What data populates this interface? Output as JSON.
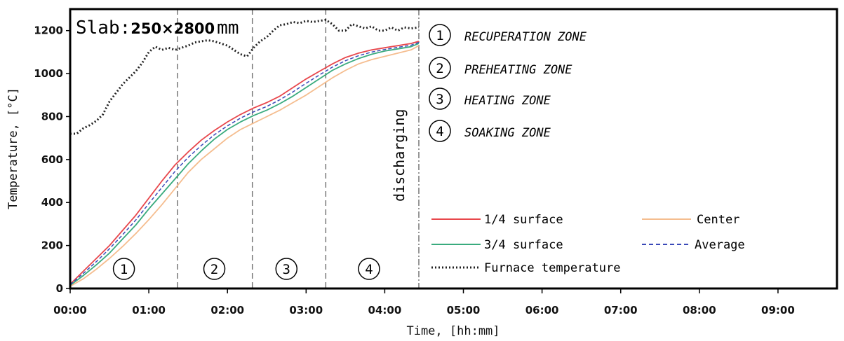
{
  "chart_data": {
    "type": "line",
    "title": {
      "prefix": "Slab:",
      "dims": "250×2800",
      "unit": "mm"
    },
    "xlabel": "Time, [hh:mm]",
    "ylabel": "Temperature, [°C]",
    "xlim": [
      0,
      585
    ],
    "ylim": [
      0,
      1300
    ],
    "xticks": [
      0,
      60,
      120,
      180,
      240,
      300,
      360,
      420,
      480,
      540
    ],
    "xtick_labels": [
      "00:00",
      "01:00",
      "02:00",
      "03:00",
      "04:00",
      "05:00",
      "06:00",
      "07:00",
      "08:00",
      "09:00"
    ],
    "yticks": [
      0,
      200,
      400,
      600,
      800,
      1000,
      1200
    ],
    "ytick_labels": [
      "0",
      "200",
      "400",
      "600",
      "800",
      "1000",
      "1200"
    ],
    "zone_boundaries": [
      82,
      139,
      195,
      266
    ],
    "discharge_label": "discharging",
    "zones": [
      {
        "num": "1",
        "name": "RECUPERATION ZONE",
        "mid": 41
      },
      {
        "num": "2",
        "name": "PREHEATING ZONE",
        "mid": 110
      },
      {
        "num": "3",
        "name": "HEATING ZONE",
        "mid": 165
      },
      {
        "num": "4",
        "name": "SOAKING ZONE",
        "mid": 228
      }
    ],
    "series": [
      {
        "name": "1/4 surface",
        "color": "#e8474c",
        "style": "solid",
        "x": [
          0,
          10,
          20,
          30,
          40,
          50,
          60,
          70,
          80,
          90,
          100,
          110,
          120,
          130,
          140,
          150,
          160,
          170,
          180,
          190,
          200,
          210,
          220,
          230,
          240,
          250,
          260,
          266
        ],
        "y": [
          20,
          80,
          140,
          200,
          270,
          340,
          420,
          500,
          575,
          635,
          690,
          735,
          775,
          810,
          840,
          865,
          895,
          935,
          975,
          1010,
          1045,
          1075,
          1095,
          1110,
          1120,
          1130,
          1140,
          1150
        ]
      },
      {
        "name": "3/4 surface",
        "color": "#3aab7e",
        "style": "solid",
        "x": [
          0,
          10,
          20,
          30,
          40,
          50,
          60,
          70,
          80,
          90,
          100,
          110,
          120,
          130,
          140,
          150,
          160,
          170,
          180,
          190,
          200,
          210,
          220,
          230,
          240,
          250,
          260,
          266
        ],
        "y": [
          15,
          60,
          110,
          165,
          230,
          295,
          370,
          440,
          510,
          580,
          640,
          695,
          740,
          775,
          805,
          830,
          860,
          895,
          935,
          975,
          1015,
          1045,
          1070,
          1090,
          1105,
          1115,
          1125,
          1140
        ]
      },
      {
        "name": "Center",
        "color": "#f5bd8f",
        "style": "solid",
        "x": [
          0,
          10,
          20,
          30,
          40,
          50,
          60,
          70,
          80,
          90,
          100,
          110,
          120,
          130,
          140,
          150,
          160,
          170,
          180,
          190,
          200,
          210,
          220,
          230,
          240,
          250,
          260,
          266
        ],
        "y": [
          10,
          45,
          90,
          140,
          195,
          255,
          320,
          390,
          465,
          540,
          600,
          650,
          700,
          740,
          770,
          800,
          830,
          865,
          900,
          940,
          980,
          1015,
          1045,
          1065,
          1080,
          1095,
          1110,
          1130
        ]
      },
      {
        "name": "Average",
        "color": "#3a49b8",
        "style": "dashed",
        "x": [
          0,
          10,
          20,
          30,
          40,
          50,
          60,
          70,
          80,
          90,
          100,
          110,
          120,
          130,
          140,
          150,
          160,
          170,
          180,
          190,
          200,
          210,
          220,
          230,
          240,
          250,
          260,
          266
        ],
        "y": [
          18,
          70,
          125,
          185,
          250,
          318,
          395,
          470,
          545,
          610,
          665,
          715,
          757,
          793,
          822,
          847,
          878,
          915,
          955,
          993,
          1030,
          1060,
          1083,
          1100,
          1112,
          1122,
          1132,
          1145
        ]
      },
      {
        "name": "Furnace temperature",
        "color": "#222222",
        "style": "dotted",
        "x": [
          0,
          5,
          10,
          15,
          20,
          25,
          30,
          35,
          40,
          45,
          50,
          55,
          60,
          65,
          70,
          75,
          80,
          85,
          90,
          95,
          100,
          105,
          110,
          115,
          120,
          125,
          130,
          135,
          140,
          145,
          150,
          155,
          160,
          165,
          170,
          175,
          180,
          185,
          190,
          195,
          200,
          205,
          210,
          215,
          220,
          225,
          230,
          235,
          240,
          245,
          250,
          255,
          260,
          266
        ],
        "y": [
          720,
          720,
          745,
          760,
          780,
          810,
          870,
          910,
          950,
          980,
          1010,
          1050,
          1100,
          1125,
          1110,
          1120,
          1110,
          1120,
          1130,
          1145,
          1150,
          1155,
          1150,
          1140,
          1130,
          1110,
          1090,
          1080,
          1120,
          1150,
          1170,
          1200,
          1225,
          1230,
          1240,
          1235,
          1245,
          1240,
          1245,
          1250,
          1230,
          1200,
          1200,
          1230,
          1220,
          1210,
          1220,
          1200,
          1200,
          1215,
          1200,
          1215,
          1210,
          1215
        ]
      }
    ],
    "legend": {
      "row1": [
        "1/4 surface",
        "Center"
      ],
      "row2": [
        "3/4 surface",
        "Average"
      ],
      "row3": [
        "Furnace temperature"
      ]
    }
  }
}
